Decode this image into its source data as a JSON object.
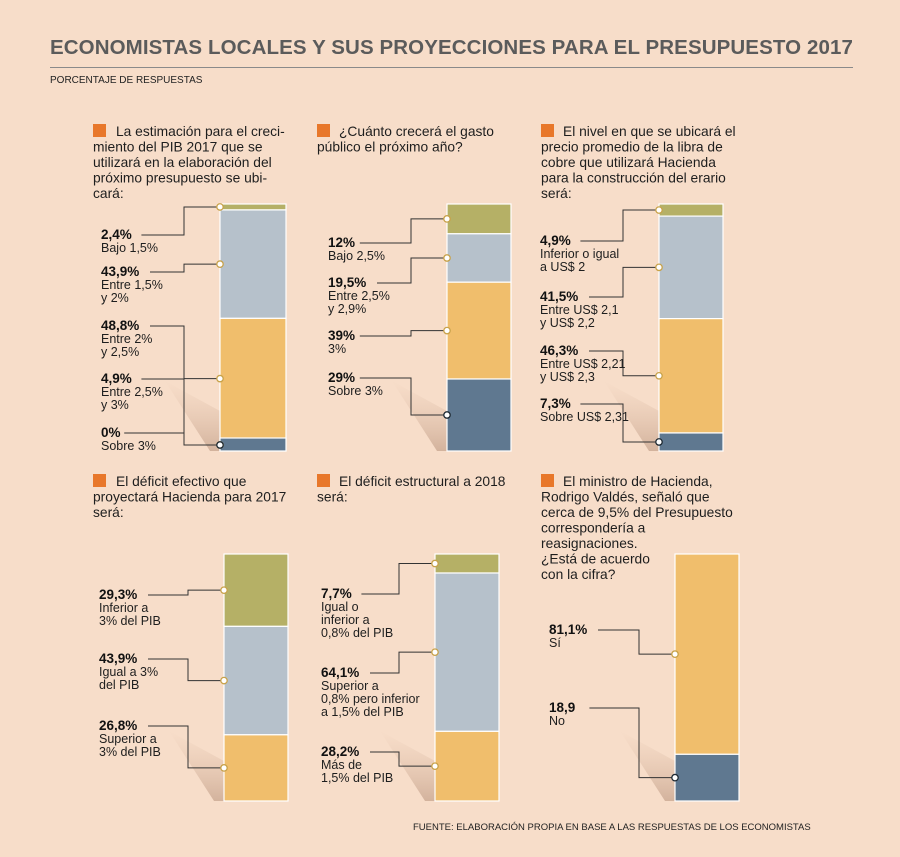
{
  "title": "ECONOMISTAS LOCALES Y SUS PROYECCIONES PARA EL PRESUPUESTO 2017",
  "subtitle": "PORCENTAJE DE RESPUESTAS",
  "source": "FUENTE: ELABORACIÓN PROPIA EN BASE A LAS RESPUESTAS DE LOS ECONOMISTAS",
  "colors": {
    "background": "#f7ddc9",
    "accent_marker": "#e8772a",
    "olive": "#b5b066",
    "blue_gray": "#b6c1cb",
    "gold": "#f0be6c",
    "slate": "#5f7890"
  },
  "chart_data": [
    {
      "type": "bar",
      "stacked": true,
      "question": [
        "La estimación para el creci-",
        "miento del PIB 2017 que se",
        "utilizará en la elaboración del",
        "próximo presupuesto se ubi-",
        "cará:"
      ],
      "segments": [
        {
          "value": 2.4,
          "label": "2,4%",
          "desc": [
            "Bajo 1,5%"
          ],
          "color": "#b5b066"
        },
        {
          "value": 43.9,
          "label": "43,9%",
          "desc": [
            "Entre 1,5%",
            "y 2%"
          ],
          "color": "#b6c1cb"
        },
        {
          "value": 48.8,
          "label": "48,8%",
          "desc": [
            "Entre 2%",
            "y 2,5%"
          ],
          "color": "#f0be6c"
        },
        {
          "value": 4.9,
          "label": "4,9%",
          "desc": [
            "Entre 2,5%",
            "y 3%"
          ],
          "color": "#f0be6c"
        },
        {
          "value": 0,
          "label": "0%",
          "desc": [
            "Sobre 3%"
          ],
          "color": "#5f7890"
        }
      ]
    },
    {
      "type": "bar",
      "stacked": true,
      "question": [
        "¿Cuánto crecerá el gasto",
        "público el próximo año?"
      ],
      "segments": [
        {
          "value": 12,
          "label": "12%",
          "desc": [
            "Bajo 2,5%"
          ],
          "color": "#b5b066"
        },
        {
          "value": 19.5,
          "label": "19,5%",
          "desc": [
            "Entre 2,5%",
            "y 2,9%"
          ],
          "color": "#b6c1cb"
        },
        {
          "value": 39,
          "label": "39%",
          "desc": [
            "3%"
          ],
          "color": "#f0be6c"
        },
        {
          "value": 29,
          "label": "29%",
          "desc": [
            "Sobre 3%"
          ],
          "color": "#5f7890"
        }
      ]
    },
    {
      "type": "bar",
      "stacked": true,
      "question": [
        "El nivel en que se ubicará el",
        "precio promedio de la libra de",
        "cobre que utilizará Hacienda",
        "para la construcción del erario",
        "será:"
      ],
      "segments": [
        {
          "value": 4.9,
          "label": "4,9%",
          "desc": [
            "Inferior o igual",
            "a US$ 2"
          ],
          "color": "#b5b066"
        },
        {
          "value": 41.5,
          "label": "41,5%",
          "desc": [
            "Entre US$ 2,1",
            "y US$ 2,2"
          ],
          "color": "#b6c1cb"
        },
        {
          "value": 46.3,
          "label": "46,3%",
          "desc": [
            "Entre US$ 2,21",
            "y US$ 2,3"
          ],
          "color": "#f0be6c"
        },
        {
          "value": 7.3,
          "label": "7,3%",
          "desc": [
            "Sobre US$ 2,31"
          ],
          "color": "#5f7890"
        }
      ]
    },
    {
      "type": "bar",
      "stacked": true,
      "question": [
        "El déficit efectivo que",
        "proyectará Hacienda para 2017",
        "será:"
      ],
      "segments": [
        {
          "value": 29.3,
          "label": "29,3%",
          "desc": [
            "Inferior a",
            "3% del PIB"
          ],
          "color": "#b5b066"
        },
        {
          "value": 43.9,
          "label": "43,9%",
          "desc": [
            "Igual a 3%",
            "del PIB"
          ],
          "color": "#b6c1cb"
        },
        {
          "value": 26.8,
          "label": "26,8%",
          "desc": [
            "Superior a",
            "3% del PIB"
          ],
          "color": "#f0be6c"
        }
      ]
    },
    {
      "type": "bar",
      "stacked": true,
      "question": [
        "El déficit estructural a 2018",
        "será:"
      ],
      "segments": [
        {
          "value": 7.7,
          "label": "7,7%",
          "desc": [
            "Igual o",
            "inferior a",
            "0,8% del PIB"
          ],
          "color": "#b5b066"
        },
        {
          "value": 64.1,
          "label": "64,1%",
          "desc": [
            "Superior a",
            "0,8% pero inferior",
            "a 1,5% del PIB"
          ],
          "color": "#b6c1cb"
        },
        {
          "value": 28.2,
          "label": "28,2%",
          "desc": [
            "Más de",
            "1,5% del PIB"
          ],
          "color": "#f0be6c"
        }
      ]
    },
    {
      "type": "bar",
      "stacked": true,
      "question": [
        "El ministro de Hacienda,",
        "Rodrigo Valdés, señaló que",
        "cerca de 9,5% del Presupuesto",
        "correspondería a",
        "reasignaciones.",
        "¿Está de acuerdo",
        "con la cifra?"
      ],
      "segments": [
        {
          "value": 81.1,
          "label": "81,1%",
          "desc": [
            "Sí"
          ],
          "color": "#f0be6c"
        },
        {
          "value": 18.9,
          "label": "18,9",
          "desc": [
            "No"
          ],
          "color": "#5f7890"
        }
      ]
    }
  ]
}
